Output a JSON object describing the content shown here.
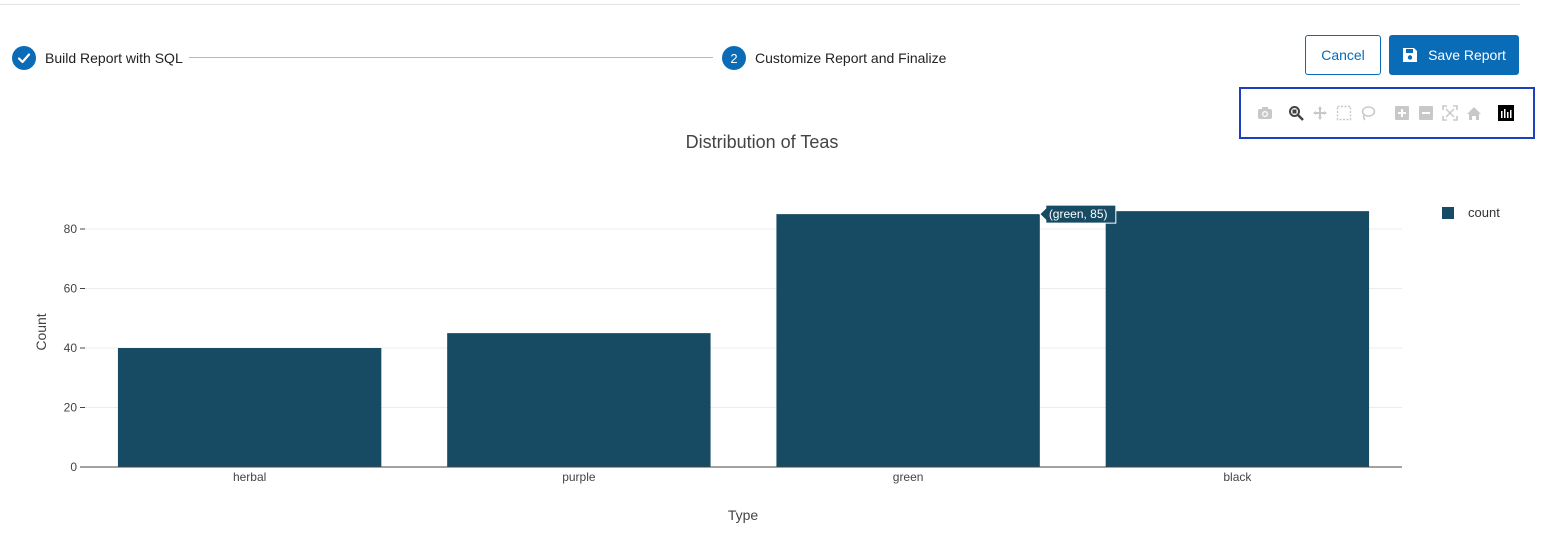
{
  "stepper": {
    "step1": {
      "label": "Build Report with SQL",
      "status": "complete"
    },
    "step2": {
      "number": "2",
      "label": "Customize Report and Finalize",
      "status": "active"
    }
  },
  "buttons": {
    "cancel": "Cancel",
    "save": "Save Report"
  },
  "modebar": {
    "icons": [
      "camera-icon",
      "zoom-icon",
      "pan-icon",
      "box-select-icon",
      "lasso-select-icon",
      "zoom-in-icon",
      "zoom-out-icon",
      "autoscale-icon",
      "reset-axes-icon",
      "plotly-logo-icon"
    ],
    "active": "zoom-icon"
  },
  "colors": {
    "accent": "#0a6bb6",
    "bar": "#164b63",
    "modebar_border": "#1d3fc2"
  },
  "chart_data": {
    "type": "bar",
    "title": "Distribution of Teas",
    "xlabel": "Type",
    "ylabel": "Count",
    "categories": [
      "herbal",
      "purple",
      "green",
      "black"
    ],
    "series": [
      {
        "name": "count",
        "values": [
          40,
          45,
          85,
          86
        ]
      }
    ],
    "yticks": [
      0,
      20,
      40,
      60,
      80
    ],
    "ylim": [
      0,
      90
    ],
    "grid": true,
    "legend": "right",
    "hover_label": "(green, 85)"
  }
}
